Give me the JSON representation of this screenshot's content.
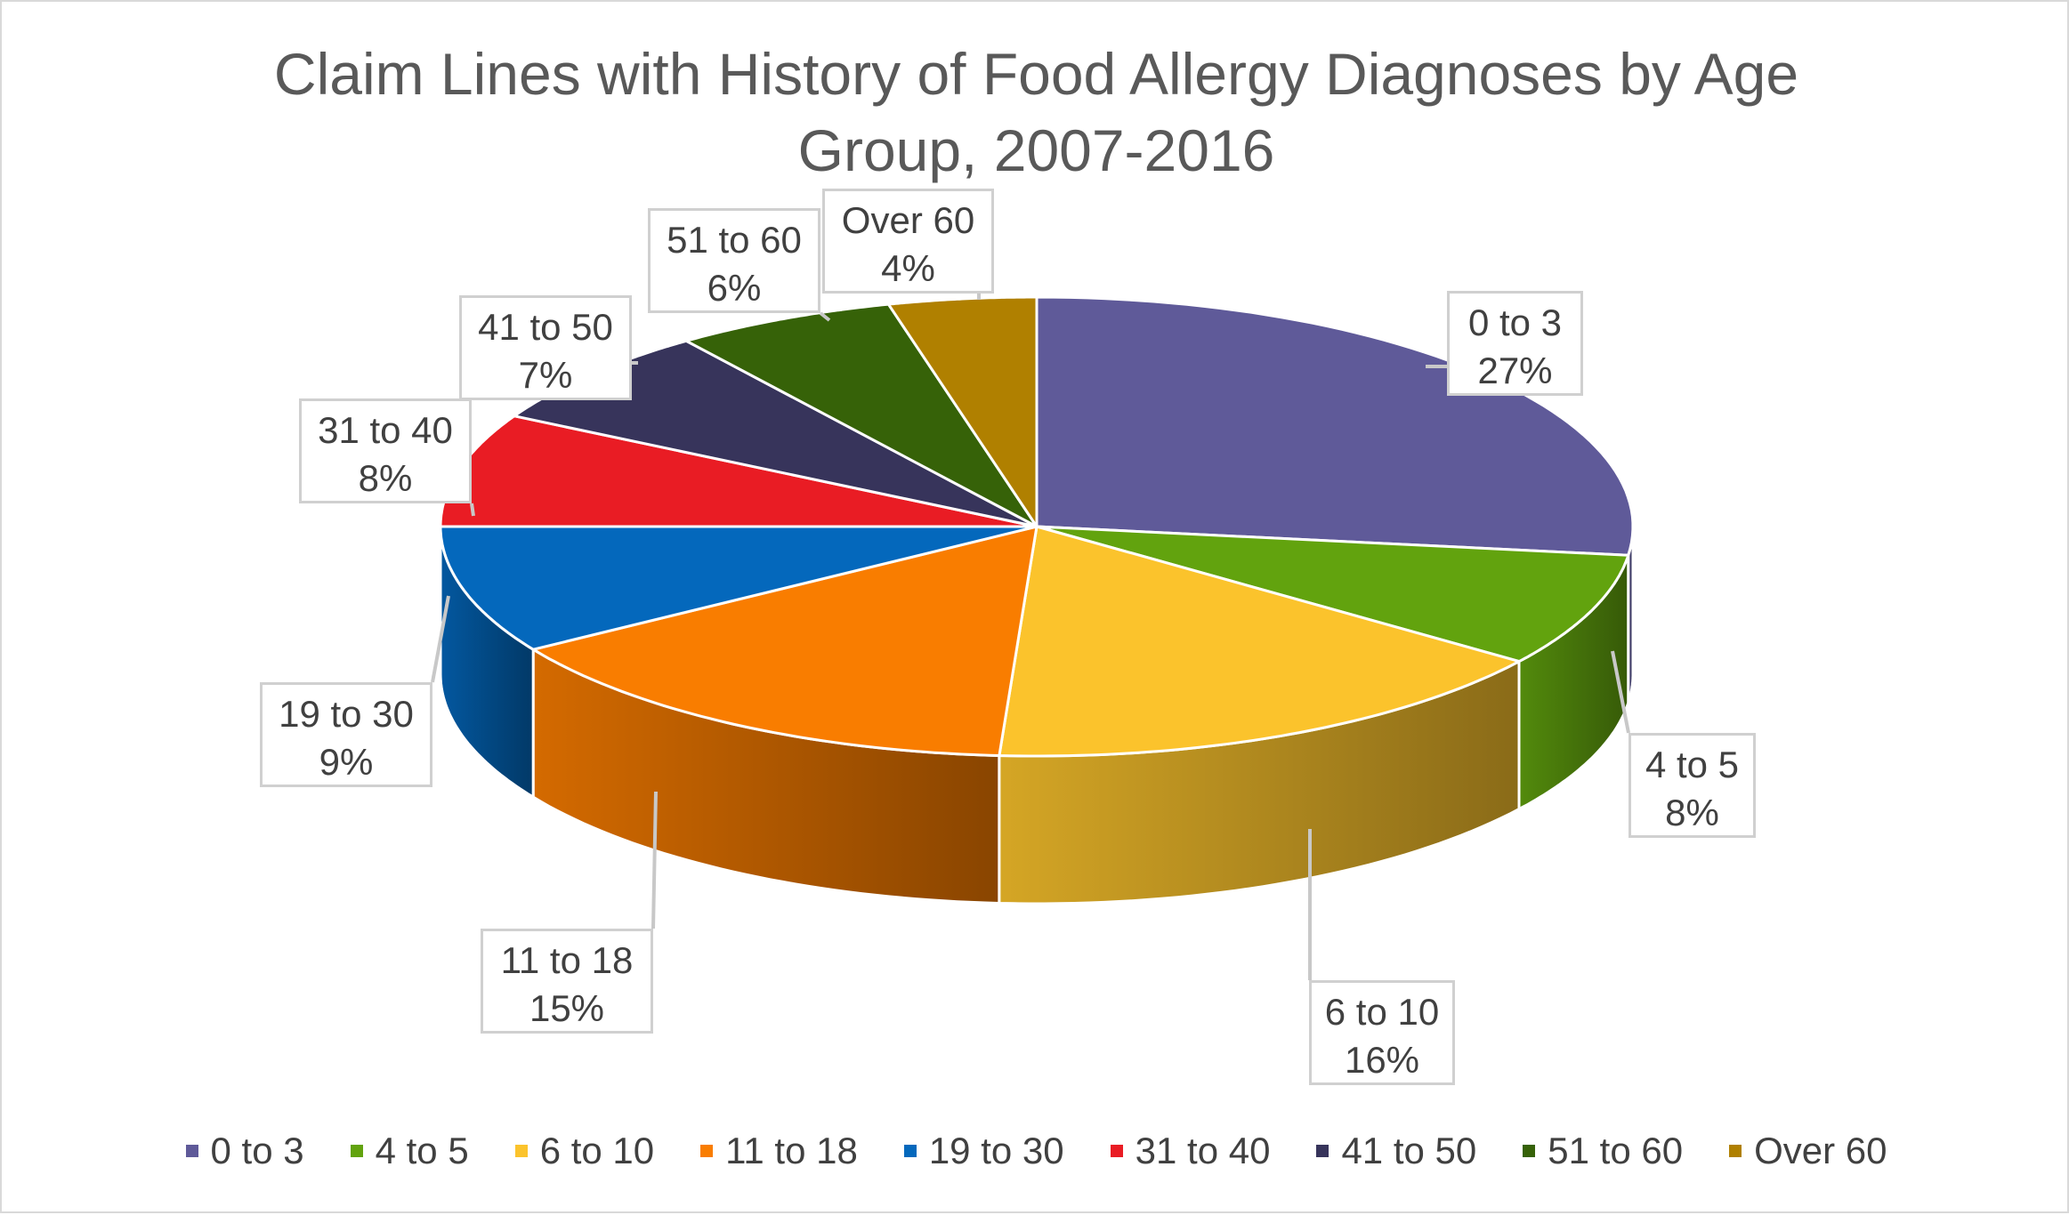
{
  "chart_data": {
    "type": "pie",
    "title": "Claim Lines with History of Food Allergy Diagnoses by Age Group, 2007-2016",
    "title_lines": [
      "Claim Lines with History of Food Allergy Diagnoses by Age",
      "Group, 2007-2016"
    ],
    "style": "3d",
    "legend_position": "bottom",
    "slices": [
      {
        "label": "0 to 3",
        "value": 27,
        "pct_label": "27%",
        "color": "#5f5a99"
      },
      {
        "label": "4 to 5",
        "value": 8,
        "pct_label": "8%",
        "color": "#62a30e"
      },
      {
        "label": "6 to 10",
        "value": 16,
        "pct_label": "16%",
        "color": "#fbc32c"
      },
      {
        "label": "11 to 18",
        "value": 15,
        "pct_label": "15%",
        "color": "#f97d00"
      },
      {
        "label": "19 to 30",
        "value": 9,
        "pct_label": "9%",
        "color": "#0468bc"
      },
      {
        "label": "31 to 40",
        "value": 8,
        "pct_label": "8%",
        "color": "#e91c24"
      },
      {
        "label": "41 to 50",
        "value": 7,
        "pct_label": "7%",
        "color": "#37345b"
      },
      {
        "label": "51 to 60",
        "value": 6,
        "pct_label": "6%",
        "color": "#366208"
      },
      {
        "label": "Over 60",
        "value": 4,
        "pct_label": "4%",
        "color": "#b08000"
      }
    ]
  }
}
